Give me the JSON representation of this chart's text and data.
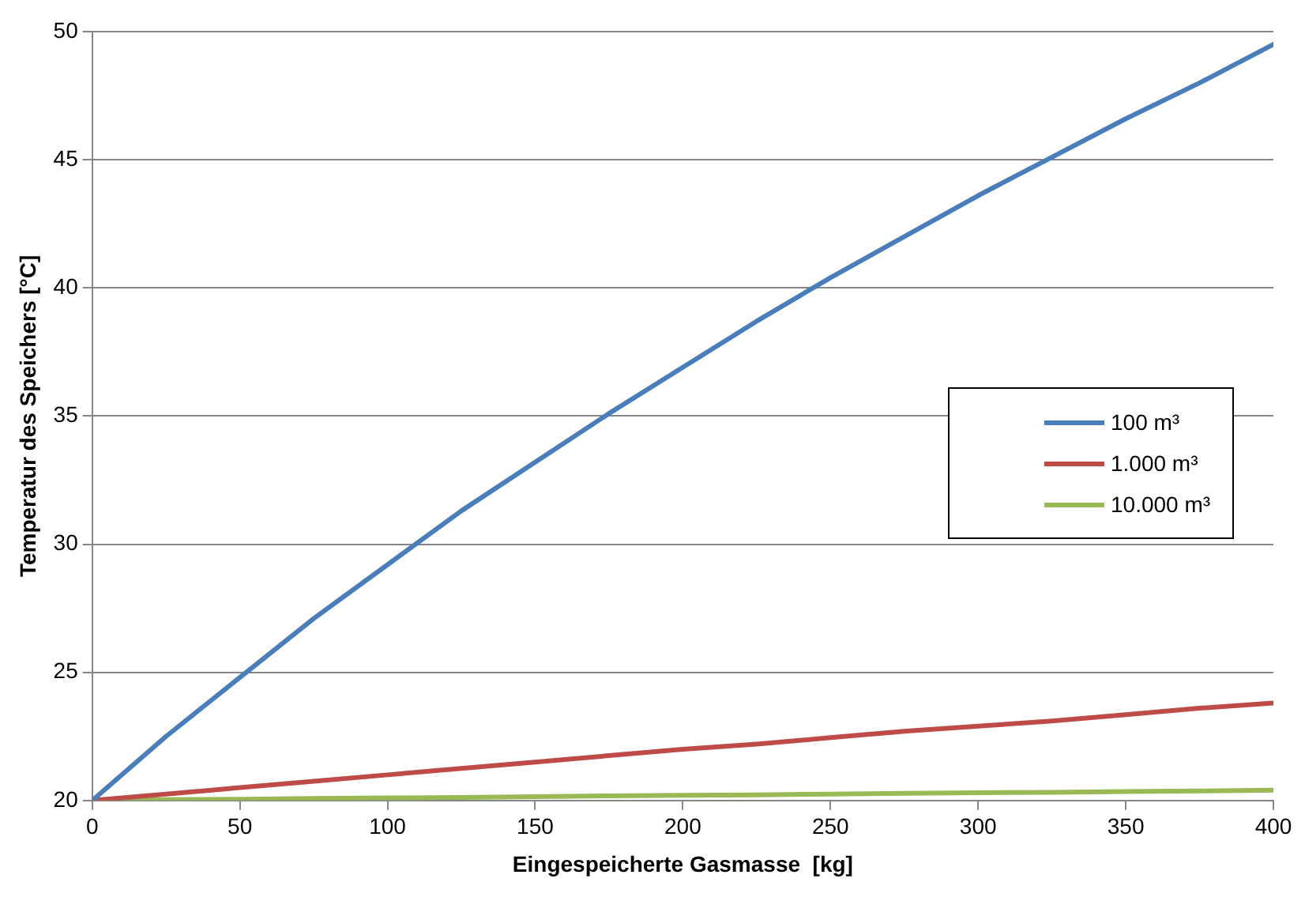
{
  "chart_data": {
    "type": "line",
    "xlabel": "Eingespeicherte Gasmasse  [kg]",
    "ylabel": "Temperatur des Speichers [°C]",
    "x": [
      0,
      25,
      50,
      75,
      100,
      125,
      150,
      175,
      200,
      225,
      250,
      275,
      300,
      325,
      350,
      375,
      400
    ],
    "series": [
      {
        "name": "100 m³",
        "color": "#4a7ebb",
        "values": [
          20,
          22.5,
          24.8,
          27.1,
          29.2,
          31.3,
          33.2,
          35.1,
          36.9,
          38.7,
          40.4,
          42.0,
          43.6,
          45.1,
          46.6,
          48.0,
          49.5
        ]
      },
      {
        "name": "1.000 m³",
        "color": "#be4b48",
        "values": [
          20,
          20.25,
          20.5,
          20.75,
          21.0,
          21.25,
          21.5,
          21.75,
          22.0,
          22.2,
          22.45,
          22.7,
          22.9,
          23.1,
          23.35,
          23.6,
          23.8
        ]
      },
      {
        "name": "10.000 m³",
        "color": "#98b954",
        "values": [
          20,
          20.03,
          20.05,
          20.08,
          20.1,
          20.12,
          20.15,
          20.18,
          20.2,
          20.22,
          20.25,
          20.28,
          20.3,
          20.32,
          20.35,
          20.37,
          20.4
        ]
      }
    ],
    "xlim": [
      0,
      400
    ],
    "xticks": [
      0,
      50,
      100,
      150,
      200,
      250,
      300,
      350,
      400
    ],
    "ylim": [
      20,
      50
    ],
    "yticks": [
      20,
      25,
      30,
      35,
      40,
      45,
      50
    ],
    "grid": "y",
    "legend": "right",
    "marker": "none",
    "line_style": "solid"
  }
}
